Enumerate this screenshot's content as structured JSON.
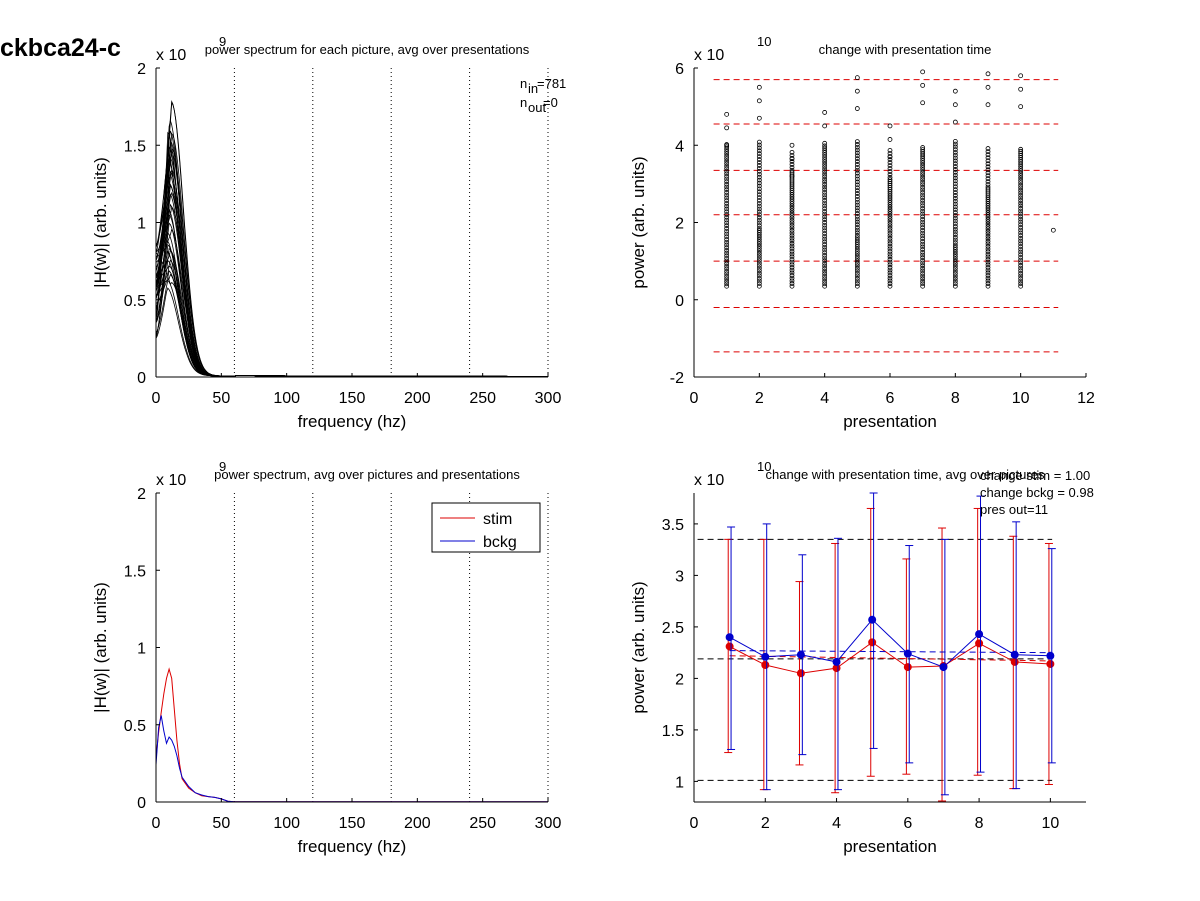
{
  "figure_title": "ckbca24-c",
  "chart_data": [
    {
      "id": "p1",
      "type": "line",
      "title": "power spectrum for each picture, avg over presentations",
      "xlabel": "frequency (hz)",
      "ylabel": "|H(w)| (arb. units)",
      "xlim": [
        0,
        300
      ],
      "ylim": [
        0,
        2
      ],
      "y_exponent": "x 10",
      "y_exponent_power": "9",
      "xticks": [
        "0",
        "50",
        "100",
        "150",
        "200",
        "250",
        "300"
      ],
      "yticks": [
        "0",
        "0.5",
        "1",
        "1.5",
        "2"
      ],
      "vlines": [
        60,
        120,
        180,
        240,
        300
      ],
      "annotation": {
        "n_in": "781",
        "n_out": "0"
      },
      "line_color": "#000000",
      "n_traces": 40,
      "peak_freq": 10,
      "peak_range": [
        0.55,
        1.85
      ]
    },
    {
      "id": "p2",
      "type": "scatter",
      "title": "change with presentation time",
      "xlabel": "presentation",
      "ylabel": "power (arb. units)",
      "xlim": [
        0,
        12
      ],
      "ylim": [
        -2,
        6
      ],
      "y_exponent": "x 10",
      "y_exponent_power": "10",
      "xticks": [
        "0",
        "2",
        "4",
        "6",
        "8",
        "10",
        "12"
      ],
      "yticks": [
        "-2",
        "0",
        "2",
        "4",
        "6"
      ],
      "hlines": [
        5.7,
        4.55,
        3.35,
        2.2,
        1.0,
        -0.2,
        -1.35
      ],
      "hline_color": "#dd0000",
      "presentations": [
        1,
        2,
        3,
        4,
        5,
        6,
        7,
        8,
        9,
        10
      ],
      "max_values": [
        4.8,
        5.5,
        4.0,
        4.85,
        5.75,
        4.5,
        5.9,
        5.4,
        5.85,
        5.8
      ],
      "extra_point": {
        "x": 11,
        "y": 1.8
      }
    },
    {
      "id": "p3",
      "type": "line",
      "title": "power spectrum, avg over pictures and presentations",
      "xlabel": "frequency (hz)",
      "ylabel": "|H(w)| (arb. units)",
      "xlim": [
        0,
        300
      ],
      "ylim": [
        0,
        2
      ],
      "y_exponent": "x 10",
      "y_exponent_power": "9",
      "xticks": [
        "0",
        "50",
        "100",
        "150",
        "200",
        "250",
        "300"
      ],
      "yticks": [
        "0",
        "0.5",
        "1",
        "1.5",
        "2"
      ],
      "vlines": [
        60,
        120,
        180,
        240,
        300
      ],
      "series": [
        {
          "name": "stim",
          "color": "#dd0000",
          "x": [
            0,
            2,
            4,
            6,
            8,
            10,
            12,
            14,
            16,
            18,
            20,
            25,
            30,
            35,
            40,
            45,
            50,
            55,
            60,
            100,
            150,
            200,
            250,
            300
          ],
          "y": [
            0.28,
            0.45,
            0.58,
            0.7,
            0.8,
            0.86,
            0.8,
            0.6,
            0.4,
            0.25,
            0.15,
            0.09,
            0.06,
            0.04,
            0.035,
            0.03,
            0.02,
            0.005,
            0.002,
            0.002,
            0.001,
            0.001,
            0.001,
            0.001
          ]
        },
        {
          "name": "bckg",
          "color": "#0000cc",
          "x": [
            0,
            2,
            4,
            6,
            8,
            10,
            12,
            14,
            16,
            18,
            20,
            25,
            30,
            35,
            40,
            45,
            50,
            55,
            60,
            100,
            150,
            200,
            250,
            300
          ],
          "y": [
            0.24,
            0.48,
            0.56,
            0.46,
            0.38,
            0.42,
            0.4,
            0.36,
            0.3,
            0.22,
            0.16,
            0.1,
            0.06,
            0.045,
            0.035,
            0.03,
            0.02,
            0.005,
            0.002,
            0.002,
            0.001,
            0.001,
            0.001,
            0.001
          ]
        }
      ],
      "legend_position": "top-right"
    },
    {
      "id": "p4",
      "type": "line",
      "title": "change with presentation time, avg over pictures",
      "xlabel": "presentation",
      "ylabel": "power (arb. units)",
      "xlim": [
        0,
        11
      ],
      "ylim": [
        0.8,
        3.8
      ],
      "y_exponent": "x 10",
      "y_exponent_power": "10",
      "xticks": [
        "0",
        "2",
        "4",
        "6",
        "8",
        "10"
      ],
      "yticks": [
        "1",
        "1.5",
        "2",
        "2.5",
        "3",
        "3.5"
      ],
      "annotation_lines": [
        "change stim = 1.00",
        "change bckg = 0.98",
        "pres out=11"
      ],
      "hlines_black": [
        3.35,
        2.19,
        1.01
      ],
      "x": [
        1,
        2,
        3,
        4,
        5,
        6,
        7,
        8,
        9,
        10
      ],
      "series": [
        {
          "name": "stim",
          "color": "#dd0000",
          "mean": [
            2.31,
            2.13,
            2.05,
            2.1,
            2.35,
            2.11,
            2.12,
            2.34,
            2.16,
            2.14
          ],
          "upper": [
            3.35,
            3.35,
            2.94,
            3.31,
            3.65,
            3.16,
            3.46,
            3.65,
            3.38,
            3.31
          ],
          "lower": [
            1.28,
            0.92,
            1.16,
            0.89,
            1.05,
            1.07,
            0.81,
            1.06,
            0.93,
            0.97
          ],
          "fit_start": 2.22,
          "fit_end": 2.17
        },
        {
          "name": "bckg",
          "color": "#0000cc",
          "mean": [
            2.4,
            2.21,
            2.23,
            2.16,
            2.57,
            2.24,
            2.11,
            2.43,
            2.23,
            2.22
          ],
          "upper": [
            3.47,
            3.5,
            3.2,
            3.36,
            3.8,
            3.29,
            3.35,
            3.77,
            3.52,
            3.26
          ],
          "lower": [
            1.31,
            0.92,
            1.26,
            0.92,
            1.32,
            1.18,
            0.87,
            1.09,
            0.93,
            1.18
          ],
          "fit_start": 2.27,
          "fit_end": 2.25
        }
      ]
    }
  ]
}
